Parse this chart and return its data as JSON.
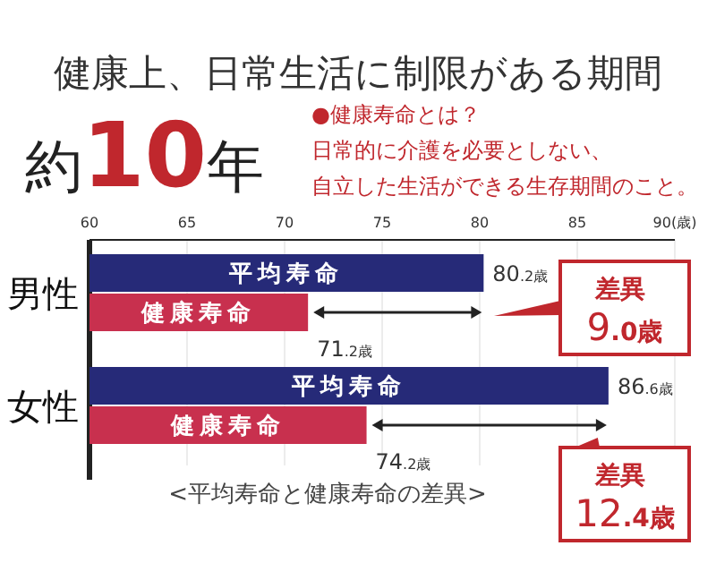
{
  "chart_data": {
    "type": "bar",
    "orientation": "horizontal",
    "title": "健康上、日常生活に制限がある期間",
    "categories": [
      "男性",
      "女性"
    ],
    "series": [
      {
        "name": "平均寿命",
        "color": "#262a78",
        "values": [
          80.2,
          86.6
        ],
        "value_labels": [
          "80.2歳",
          "86.6歳"
        ]
      },
      {
        "name": "健康寿命",
        "color": "#c8304e",
        "values": [
          71.2,
          74.2
        ],
        "value_labels": [
          "71.2歳",
          "74.2歳"
        ]
      }
    ],
    "xlim": [
      60,
      90
    ],
    "xticks": [
      60,
      65,
      70,
      75,
      80,
      85,
      {
        "value": 90,
        "label": "90(歳)"
      }
    ],
    "grid": "x",
    "legend": false,
    "annotations": [
      "約10年",
      "●健康寿命とは？",
      "日常的に介護を必要としない、",
      "自立した生活ができる生存期間のこと。",
      "差異 9.0歳",
      "差異 12.4歳",
      "<平均寿命と健康寿命の差異>"
    ]
  }
}
